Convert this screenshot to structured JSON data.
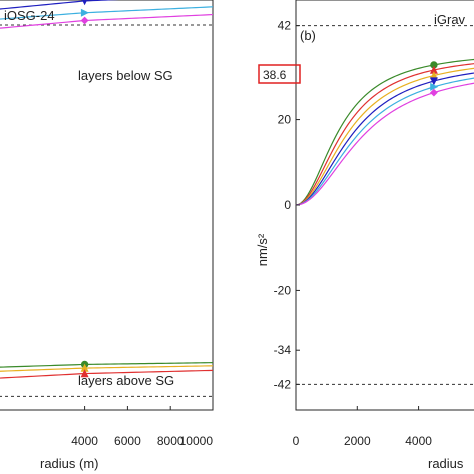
{
  "chart_data": [
    {
      "type": "line",
      "title": "iOSG-24",
      "xlabel": "radius (m)",
      "ylabel": "",
      "xlim": [
        0,
        10000
      ],
      "ylim": [
        -45,
        45
      ],
      "x_tick_values": [
        4000,
        6000,
        8000,
        10000
      ],
      "x_tick_labels": [
        "4000",
        "6000",
        "8000",
        "10000"
      ],
      "reference_lines": [
        39.5,
        -42
      ],
      "annotations": [
        {
          "text": "layers below SG",
          "x": 6600,
          "y": 33.5
        },
        {
          "text": "layers above SG",
          "x": 6600,
          "y": -37.8
        }
      ],
      "series": [
        {
          "color": "#1f1fbf",
          "marker": "triangle-down",
          "x": [
            0,
            4000,
            10000
          ],
          "y": [
            43.0,
            44.8,
            46.0
          ]
        },
        {
          "color": "#3cb0e0",
          "marker": "triangle-right",
          "x": [
            0,
            4000,
            10000
          ],
          "y": [
            40.8,
            42.2,
            43.5
          ]
        },
        {
          "color": "#e040e0",
          "marker": "diamond",
          "x": [
            0,
            4000,
            10000
          ],
          "y": [
            38.8,
            40.5,
            41.8
          ]
        },
        {
          "color": "#3a8a2a",
          "marker": "circle",
          "x": [
            0,
            4000,
            10000
          ],
          "y": [
            -35.6,
            -35.0,
            -34.6
          ]
        },
        {
          "color": "#e8b020",
          "marker": "triangle-up",
          "x": [
            0,
            4000,
            10000
          ],
          "y": [
            -36.5,
            -35.8,
            -35.3
          ]
        },
        {
          "color": "#e03030",
          "marker": "triangle-up",
          "x": [
            0,
            4000,
            10000
          ],
          "y": [
            -38.0,
            -37.0,
            -36.3
          ]
        }
      ]
    },
    {
      "type": "line",
      "title": "iGrav",
      "panel_label": "(b)",
      "xlabel": "radius",
      "ylabel": "nm/s²",
      "xlim": [
        0,
        6200
      ],
      "ylim": [
        -48,
        48
      ],
      "x_tick_values": [
        0,
        2000,
        4000
      ],
      "x_tick_labels": [
        "0",
        "2000",
        "4000"
      ],
      "y_tick_values": [
        42,
        20,
        0,
        -20,
        -34,
        -42
      ],
      "y_tick_labels": [
        "42",
        "20",
        "0",
        "-20",
        "-34",
        "-42"
      ],
      "highlight_value": "38.6",
      "reference_lines": [
        42,
        -42
      ],
      "series": [
        {
          "color": "#3a8a2a",
          "marker": "circle",
          "amplitude": 36.2,
          "scale": 1450
        },
        {
          "color": "#e03030",
          "marker": "triangle-up",
          "amplitude": 35.6,
          "scale": 1600
        },
        {
          "color": "#e8b020",
          "marker": "triangle-up",
          "amplitude": 34.9,
          "scale": 1750
        },
        {
          "color": "#1f1fbf",
          "marker": "triangle-down",
          "amplitude": 34.2,
          "scale": 1900
        },
        {
          "color": "#3cb0e0",
          "marker": "triangle-right",
          "amplitude": 33.4,
          "scale": 2050
        },
        {
          "color": "#e040e0",
          "marker": "diamond",
          "amplitude": 32.6,
          "scale": 2200
        }
      ],
      "marker_x": 4500
    }
  ]
}
